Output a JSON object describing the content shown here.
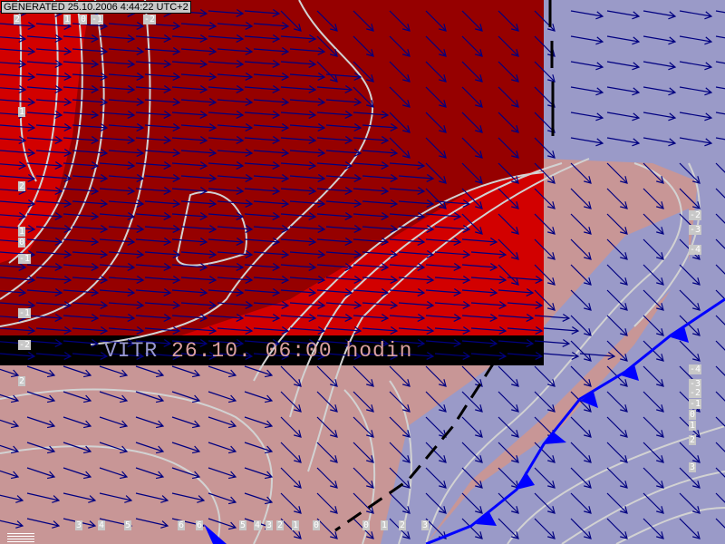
{
  "header": {
    "generated": "GENERATED 25.10.2006 4:44:22 UTC+2"
  },
  "title": {
    "field": "VITR",
    "time": " 26.10. 06:00 hodin"
  },
  "colors": {
    "dark_red": "#960000",
    "red": "#d20000",
    "pink": "#c89696",
    "lavender": "#9a9ac8",
    "contour": "#d2d2d2",
    "arrow": "#000080",
    "front": "#0000ff",
    "title_bar": "#000000"
  },
  "legend_icon": "legend-bars-icon",
  "front_type": "cold-front",
  "contour_labels": {
    "top": [
      "2",
      "1",
      "0",
      "-1",
      "-2"
    ],
    "left": [
      "1",
      "2",
      "1",
      "0",
      "-1",
      "-1",
      "-2",
      "2"
    ],
    "right": [
      "-2",
      "-3",
      "-4",
      "-4",
      "-3",
      "-2",
      "-1",
      "0",
      "1",
      "2",
      "3"
    ],
    "bottom": [
      "3",
      "4",
      "5",
      "6",
      "6",
      "5",
      "4",
      "3",
      "2",
      "1",
      "0",
      "0",
      "1",
      "2",
      "3"
    ]
  }
}
